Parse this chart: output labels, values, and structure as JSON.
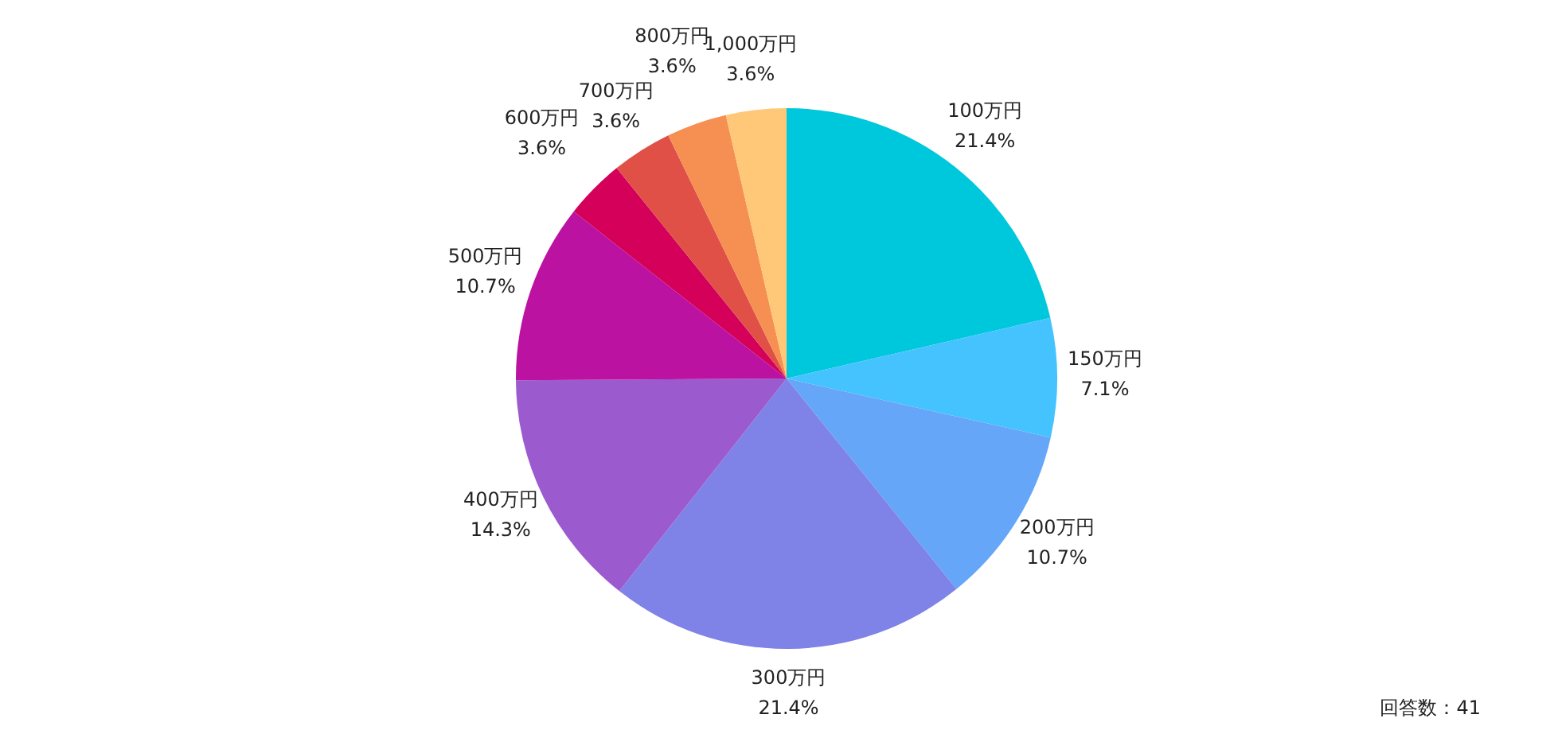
{
  "chart_data": {
    "type": "pie",
    "categories": [
      "100万円",
      "150万円",
      "200万円",
      "300万円",
      "400万円",
      "500万円",
      "600万円",
      "700万円",
      "800万円",
      "1,000万円"
    ],
    "values": [
      21.4,
      7.1,
      10.7,
      21.4,
      14.3,
      10.7,
      3.6,
      3.6,
      3.6,
      3.6
    ],
    "colors": [
      "#00c8dc",
      "#45c3ff",
      "#66a6f8",
      "#7f82e6",
      "#9b5bce",
      "#bb12a2",
      "#d4005a",
      "#e05046",
      "#f59052",
      "#ffc878"
    ],
    "value_labels": [
      "21.4%",
      "7.1%",
      "10.7%",
      "21.4%",
      "14.3%",
      "10.7%",
      "3.6%",
      "3.6%",
      "3.6%",
      "3.6%"
    ],
    "annotations": [
      "回答数：41"
    ]
  }
}
